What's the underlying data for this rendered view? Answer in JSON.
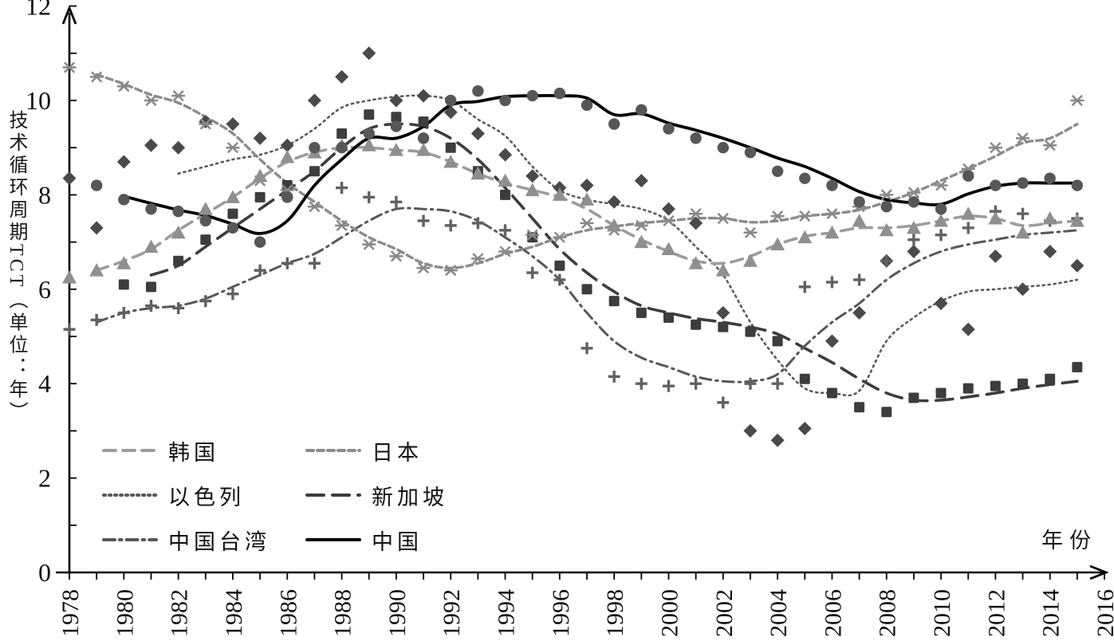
{
  "axes": {
    "y_title": "技术循环周期TCT（单位：年）",
    "x_title": "年份",
    "y_min": 0,
    "y_max": 12,
    "y_tick_step_labeled": 2,
    "y_tick_step_minor": 1,
    "y_tick_labels": [
      "0",
      "2",
      "4",
      "6",
      "8",
      "10",
      "12"
    ],
    "x_min": 1978,
    "x_max": 2016,
    "x_tick_step_labeled": 2,
    "x_tick_step_minor": 1,
    "x_tick_labels": [
      "1978",
      "1980",
      "1982",
      "1984",
      "1986",
      "1988",
      "1990",
      "1992",
      "1994",
      "1996",
      "1998",
      "2000",
      "2002",
      "2004",
      "2006",
      "2008",
      "2010",
      "2012",
      "2014",
      "2016"
    ]
  },
  "legend": {
    "items": [
      {
        "series": "korea",
        "label": "韩国",
        "col": 0,
        "row": 0
      },
      {
        "series": "israel",
        "label": "以色列",
        "col": 0,
        "row": 1
      },
      {
        "series": "taiwan",
        "label": "中国台湾",
        "col": 0,
        "row": 2
      },
      {
        "series": "japan",
        "label": "日本",
        "col": 1,
        "row": 0
      },
      {
        "series": "singapore",
        "label": "新加坡",
        "col": 1,
        "row": 1
      },
      {
        "series": "china",
        "label": "中国",
        "col": 1,
        "row": 2
      }
    ]
  },
  "chart_data": {
    "type": "line",
    "description": "Scatter markers (yearly values) with smoothed trend lines, grid off, y-range 0-12 years, x-range 1978-2016",
    "series": [
      {
        "id": "israel",
        "label": "以色列",
        "marker": "diamond",
        "marker_color": "#4a4a4a",
        "line_color": "#5a5a5a",
        "line_style": "dotted",
        "line_width": 2.6,
        "marker_first_year": 1978,
        "marker_values": [
          8.35,
          7.3,
          8.7,
          9.05,
          9.0,
          9.55,
          9.5,
          9.2,
          9.05,
          10.0,
          10.5,
          11.0,
          10.0,
          10.1,
          9.75,
          9.3,
          8.85,
          8.4,
          8.15,
          8.2,
          7.85,
          8.3,
          7.7,
          7.4,
          5.5,
          3.0,
          2.8,
          3.05,
          4.9,
          5.5,
          6.6,
          6.8,
          5.7,
          5.15,
          6.7,
          6.0,
          6.8,
          6.5
        ],
        "line_first_year": 1982,
        "line_values": [
          8.45,
          8.6,
          8.75,
          8.85,
          9.05,
          9.4,
          9.85,
          10.0,
          10.08,
          10.1,
          10.0,
          9.6,
          9.25,
          8.6,
          8.1,
          7.9,
          7.8,
          7.7,
          7.45,
          6.9,
          6.3,
          5.3,
          4.5,
          3.9,
          3.8,
          3.85,
          4.9,
          5.4,
          5.75,
          5.95,
          6.0,
          6.05,
          6.1,
          6.2
        ]
      },
      {
        "id": "singapore",
        "label": "新加坡",
        "marker": "square",
        "marker_color": "#3d3d3d",
        "line_color": "#3d3d3d",
        "line_style": "dash-long",
        "line_width": 3.6,
        "marker_first_year": 1980,
        "marker_values": [
          6.1,
          6.05,
          6.6,
          7.05,
          7.6,
          7.95,
          8.2,
          8.5,
          9.3,
          9.7,
          9.65,
          9.55,
          9.0,
          8.5,
          8.0,
          7.1,
          6.5,
          6.0,
          5.75,
          5.5,
          5.4,
          5.25,
          5.2,
          5.1,
          4.9,
          4.1,
          3.8,
          3.5,
          3.4,
          3.7,
          3.8,
          3.9,
          3.95,
          4.0,
          4.1,
          4.35
        ],
        "line_first_year": 1981,
        "line_values": [
          6.3,
          6.5,
          6.9,
          7.3,
          7.7,
          8.1,
          8.5,
          9.0,
          9.4,
          9.5,
          9.45,
          9.2,
          8.75,
          8.15,
          7.5,
          6.85,
          6.35,
          5.95,
          5.65,
          5.5,
          5.38,
          5.3,
          5.2,
          5.05,
          4.75,
          4.45,
          4.1,
          3.8,
          3.65,
          3.65,
          3.72,
          3.8,
          3.9,
          3.98,
          4.05
        ]
      },
      {
        "id": "taiwan",
        "label": "中国台湾",
        "marker": "plus",
        "marker_color": "#616161",
        "line_color": "#585858",
        "line_style": "dash-dot",
        "line_width": 3.0,
        "marker_first_year": 1978,
        "marker_values": [
          5.15,
          5.35,
          5.5,
          5.65,
          5.6,
          5.75,
          5.9,
          6.4,
          6.55,
          6.55,
          8.15,
          7.95,
          7.85,
          7.45,
          7.35,
          7.4,
          7.25,
          6.35,
          6.2,
          4.75,
          4.15,
          4.0,
          3.95,
          4.0,
          3.6,
          4.0,
          4.0,
          6.05,
          6.15,
          6.2,
          6.6,
          7.05,
          7.15,
          7.3,
          7.65,
          7.6,
          7.45,
          7.5
        ],
        "line_first_year": 1979,
        "line_values": [
          5.3,
          5.5,
          5.6,
          5.65,
          5.8,
          6.05,
          6.3,
          6.55,
          6.75,
          7.1,
          7.45,
          7.7,
          7.7,
          7.65,
          7.45,
          7.1,
          6.7,
          6.2,
          5.5,
          4.9,
          4.55,
          4.35,
          4.15,
          4.05,
          4.05,
          4.2,
          4.8,
          5.3,
          5.7,
          6.2,
          6.55,
          6.8,
          6.95,
          7.05,
          7.15,
          7.2,
          7.25
        ]
      },
      {
        "id": "japan",
        "label": "日本",
        "marker": "xstar",
        "marker_color": "#898989",
        "line_color": "#8c8c8c",
        "line_style": "dash-short",
        "line_width": 3.4,
        "marker_first_year": 1978,
        "marker_values": [
          10.7,
          10.5,
          10.3,
          10.0,
          10.1,
          9.5,
          9.0,
          8.3,
          8.1,
          7.75,
          7.35,
          6.95,
          6.7,
          6.45,
          6.4,
          6.65,
          6.8,
          7.15,
          7.1,
          7.4,
          7.25,
          7.35,
          7.45,
          7.6,
          7.5,
          7.2,
          7.55,
          7.55,
          7.6,
          7.75,
          8.0,
          8.05,
          8.2,
          8.55,
          9.0,
          9.2,
          9.05,
          10.0
        ],
        "line_first_year": 1979,
        "line_values": [
          10.55,
          10.35,
          10.12,
          9.95,
          9.65,
          9.3,
          8.75,
          8.25,
          7.85,
          7.45,
          7.1,
          6.85,
          6.55,
          6.45,
          6.55,
          6.75,
          6.9,
          7.1,
          7.25,
          7.33,
          7.4,
          7.45,
          7.5,
          7.5,
          7.42,
          7.45,
          7.55,
          7.6,
          7.68,
          7.85,
          8.05,
          8.3,
          8.55,
          8.82,
          9.1,
          9.2,
          9.5
        ]
      },
      {
        "id": "korea",
        "label": "韩国",
        "marker": "triangle",
        "marker_color": "#8f8f8f",
        "line_color": "#9c9c9c",
        "line_style": "dash-medium",
        "line_width": 3.6,
        "marker_first_year": 1978,
        "marker_values": [
          6.25,
          6.4,
          6.55,
          6.9,
          7.2,
          7.7,
          7.95,
          8.4,
          8.8,
          8.9,
          9.05,
          9.05,
          8.95,
          8.95,
          8.7,
          8.45,
          8.3,
          8.1,
          8.0,
          7.9,
          7.35,
          7.0,
          6.85,
          6.55,
          6.4,
          6.6,
          6.95,
          7.1,
          7.2,
          7.45,
          7.25,
          7.3,
          7.45,
          7.6,
          7.5,
          7.2,
          7.5,
          7.45
        ],
        "line_first_year": 1979,
        "line_values": [
          6.4,
          6.6,
          6.85,
          7.25,
          7.6,
          7.95,
          8.35,
          8.7,
          8.9,
          9.0,
          9.0,
          8.95,
          8.9,
          8.7,
          8.45,
          8.25,
          8.1,
          7.95,
          7.7,
          7.35,
          7.05,
          6.8,
          6.6,
          6.55,
          6.7,
          6.95,
          7.12,
          7.2,
          7.3,
          7.3,
          7.35,
          7.45,
          7.55,
          7.5,
          7.35,
          7.4,
          7.45
        ]
      },
      {
        "id": "china",
        "label": "中国",
        "marker": "circle",
        "marker_color": "#575757",
        "line_color": "#000000",
        "line_style": "solid",
        "line_width": 3.8,
        "marker_first_year": 1979,
        "marker_values": [
          8.2,
          7.9,
          7.7,
          7.65,
          7.45,
          7.3,
          7.0,
          7.95,
          9.0,
          9.0,
          9.3,
          9.45,
          9.2,
          10.0,
          10.2,
          10.0,
          10.1,
          10.15,
          9.9,
          9.5,
          9.8,
          9.4,
          9.2,
          9.0,
          8.9,
          8.5,
          8.35,
          8.2,
          7.85,
          7.75,
          7.85,
          7.7,
          8.4,
          8.2,
          8.25,
          8.35,
          8.2
        ],
        "line_first_year": 1980,
        "line_values": [
          7.97,
          7.82,
          7.68,
          7.56,
          7.38,
          7.18,
          7.45,
          8.2,
          8.75,
          9.2,
          9.2,
          9.45,
          9.9,
          9.98,
          10.08,
          10.1,
          10.1,
          10.05,
          9.7,
          9.72,
          9.52,
          9.37,
          9.2,
          9.0,
          8.78,
          8.6,
          8.35,
          8.07,
          7.9,
          7.83,
          7.8,
          8.02,
          8.18,
          8.25,
          8.25,
          8.25
        ]
      }
    ]
  }
}
